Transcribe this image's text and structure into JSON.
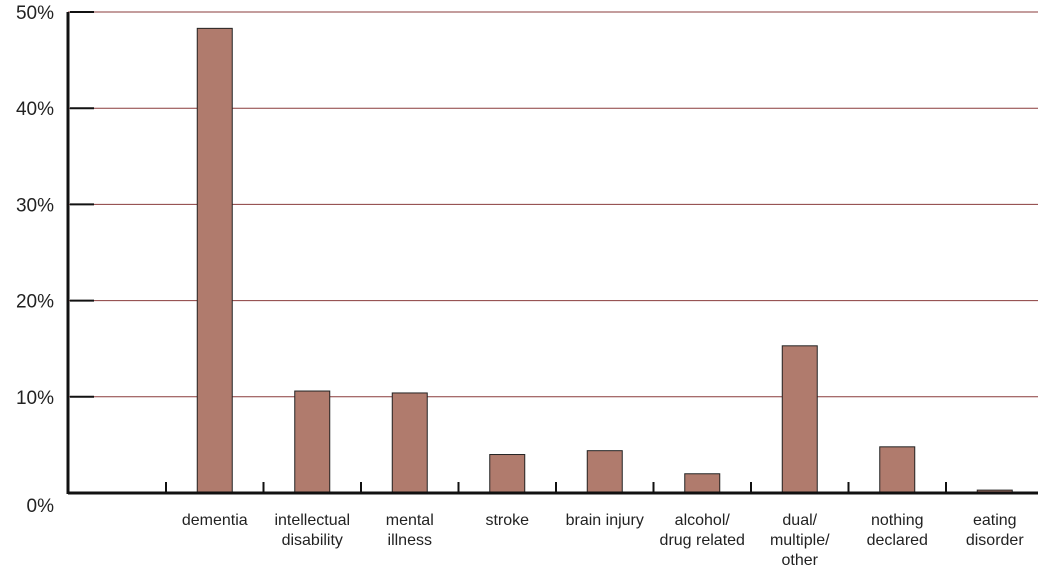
{
  "chart_data": {
    "type": "bar",
    "title": "",
    "xlabel": "",
    "ylabel": "",
    "categories": [
      [
        "dementia"
      ],
      [
        "intellectual",
        "disability"
      ],
      [
        "mental",
        "illness"
      ],
      [
        "stroke"
      ],
      [
        "brain injury"
      ],
      [
        "alcohol/",
        "drug related"
      ],
      [
        "dual/",
        "multiple/",
        "other"
      ],
      [
        "nothing",
        "declared"
      ],
      [
        "eating",
        "disorder"
      ]
    ],
    "values": [
      48.3,
      10.6,
      10.4,
      4.0,
      4.4,
      2.0,
      15.3,
      4.8,
      0.3
    ],
    "ylim": [
      0,
      50
    ],
    "yticks": [
      "0%",
      "10%",
      "20%",
      "30%",
      "40%",
      "50%"
    ],
    "ytick_values": [
      0,
      10,
      20,
      30,
      40,
      50
    ],
    "grid": true,
    "colors": {
      "bar_fill": "#b07b6d",
      "bar_stroke": "#222222",
      "grid": "#8a3b3b",
      "axis": "#111111"
    }
  }
}
